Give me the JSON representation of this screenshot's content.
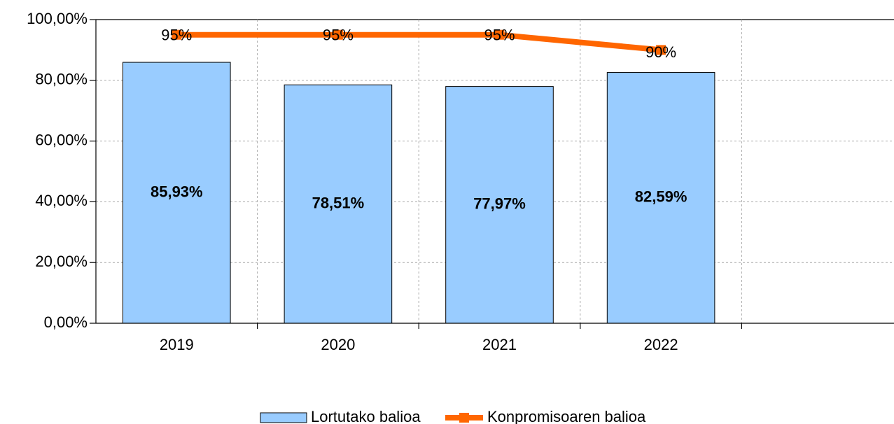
{
  "chart_data": {
    "type": "bar-line",
    "categories": [
      "2019",
      "2020",
      "2021",
      "2022",
      null
    ],
    "series": [
      {
        "name": "Lortutako balioa",
        "type": "bar",
        "color": "#99ccff",
        "values": [
          85.93,
          78.51,
          77.97,
          82.59,
          null
        ],
        "value_labels": [
          "85,93%",
          "78,51%",
          "77,97%",
          "82,59%",
          null
        ]
      },
      {
        "name": "Konpromisoaren balioa",
        "type": "line",
        "color": "#ff6600",
        "values": [
          95,
          95,
          95,
          90,
          null
        ],
        "value_labels": [
          "95%",
          "95%",
          "95%",
          "90%",
          null
        ]
      }
    ],
    "ylim": [
      0,
      100
    ],
    "yticks": [
      {
        "value": 0,
        "label": "0,00%"
      },
      {
        "value": 20,
        "label": "20,00%"
      },
      {
        "value": 40,
        "label": "40,00%"
      },
      {
        "value": 60,
        "label": "60,00%"
      },
      {
        "value": 80,
        "label": "80,00%"
      },
      {
        "value": 100,
        "label": "100,00%"
      }
    ],
    "grid": true,
    "legend": "bottom"
  }
}
